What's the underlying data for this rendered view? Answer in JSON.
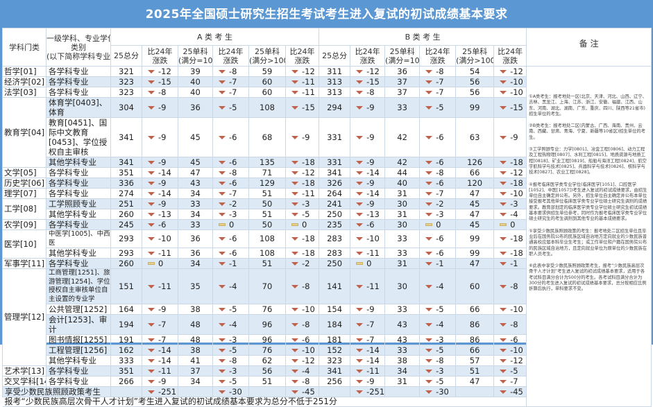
{
  "title": "2025年全国硕士研究生招生考试考生进入复试的初试成绩基本要求",
  "headers": {
    "category": "学科门类",
    "subject_line1": "一级学科、专业学位",
    "subject_line2": "类别",
    "subject_line3": "(以下简称学科专业)",
    "group_a": "A 类 考 生",
    "group_b": "B 类 考 生",
    "notes": "备 注",
    "cols": [
      "25总分",
      "比24年涨跌",
      "25单科(满分=100",
      "比24年涨跌",
      "25单科(满分>100",
      "比24年涨跌"
    ]
  },
  "groups": [
    {
      "category": "哲学[01]",
      "rows": [
        {
          "subject": "各学科专业",
          "a": [
            321,
            -12,
            39,
            -8,
            59,
            -12
          ],
          "b": [
            311,
            -12,
            36,
            -8,
            54,
            -12
          ]
        }
      ]
    },
    {
      "category": "经济学[02]",
      "rows": [
        {
          "subject": "各学科专业",
          "a": [
            323,
            -15,
            40,
            -7,
            60,
            -11
          ],
          "b": [
            313,
            -15,
            37,
            -7,
            56,
            -10
          ]
        }
      ]
    },
    {
      "category": "法学[03]",
      "rows": [
        {
          "subject": "各学科专业",
          "a": [
            323,
            -8,
            40,
            -7,
            60,
            -11
          ],
          "b": [
            313,
            -8,
            37,
            -7,
            56,
            -10
          ]
        }
      ]
    },
    {
      "category": "教育学[04]",
      "rows": [
        {
          "subject": "体育学[0403]、体育",
          "a": [
            304,
            -9,
            36,
            -5,
            108,
            -15
          ],
          "b": [
            294,
            -9,
            33,
            -5,
            99,
            -15
          ]
        },
        {
          "subject": "教育[0451]、国际中文教育[0453]、学位授权自主审核",
          "a": [
            341,
            -9,
            45,
            -6,
            68,
            -9
          ],
          "b": [
            331,
            -9,
            42,
            -6,
            63,
            -9
          ]
        },
        {
          "subject": "其他学科专业",
          "a": [
            341,
            -9,
            45,
            -6,
            135,
            -18
          ],
          "b": [
            331,
            -9,
            42,
            -6,
            126,
            -18
          ]
        }
      ]
    },
    {
      "category": "文学[05]",
      "rows": [
        {
          "subject": "各学科专业",
          "a": [
            351,
            -14,
            47,
            -8,
            71,
            -12
          ],
          "b": [
            341,
            -14,
            44,
            -8,
            66,
            -12
          ]
        }
      ]
    },
    {
      "category": "历史学[06]",
      "rows": [
        {
          "subject": "各学科专业",
          "a": [
            336,
            -9,
            43,
            -6,
            129,
            -18
          ],
          "b": [
            326,
            -9,
            40,
            -6,
            120,
            -18
          ]
        }
      ]
    },
    {
      "category": "理学[07]",
      "rows": [
        {
          "subject": "各学科专业",
          "a": [
            274,
            -14,
            34,
            -7,
            51,
            -11
          ],
          "b": [
            264,
            -14,
            31,
            -7,
            47,
            -10
          ]
        }
      ]
    },
    {
      "category": "工学[08]",
      "rows": [
        {
          "subject": "工学照顾专业",
          "a": [
            251,
            -9,
            33,
            -2,
            50,
            -3
          ],
          "b": [
            241,
            -9,
            30,
            -2,
            45,
            -3
          ]
        },
        {
          "subject": "其他学科专业",
          "a": [
            260,
            -13,
            34,
            -3,
            51,
            -5
          ],
          "b": [
            250,
            -13,
            31,
            -3,
            47,
            -4
          ]
        }
      ]
    },
    {
      "category": "农学[09]",
      "rows": [
        {
          "subject": "各学科专业",
          "a": [
            245,
            -6,
            33,
            0,
            50,
            0
          ],
          "b": [
            235,
            -6,
            30,
            0,
            45,
            0
          ]
        }
      ]
    },
    {
      "category": "医学[10]",
      "rows": [
        {
          "subject": "中医学[1005]、中西医",
          "small": true,
          "a": [
            293,
            -10,
            36,
            -6,
            108,
            -18
          ],
          "b": [
            283,
            -10,
            33,
            -6,
            99,
            -18
          ]
        },
        {
          "subject": "其他学科专业",
          "a": [
            293,
            -11,
            36,
            -6,
            108,
            -18
          ],
          "b": [
            283,
            -11,
            33,
            -6,
            99,
            -18
          ]
        }
      ]
    },
    {
      "category": "军事学[11]",
      "rows": [
        {
          "subject": "各学科专业",
          "a": [
            260,
            0,
            34,
            -1,
            51,
            -2
          ],
          "b": [
            250,
            0,
            31,
            -1,
            47,
            -1
          ]
        }
      ]
    },
    {
      "category": "管理学[12]",
      "rows": [
        {
          "subject": "工商管理[1251]、旅游管理[1254]、学位授权自主审核单位自主设置的专业学",
          "small": true,
          "a": [
            151,
            -11,
            35,
            -4,
            70,
            -8
          ],
          "b": [
            141,
            -11,
            30,
            -4,
            60,
            -8
          ]
        },
        {
          "subject": "公共管理[1252]",
          "a": [
            164,
            -9,
            38,
            -5,
            76,
            -10
          ],
          "b": [
            154,
            -9,
            33,
            -5,
            66,
            -10
          ]
        },
        {
          "subject": "会计[1253]、审计",
          "a": [
            194,
            -7,
            48,
            -4,
            96,
            -8
          ],
          "b": [
            184,
            -7,
            43,
            -4,
            86,
            -8
          ]
        },
        {
          "subject": "图书情报[1255]",
          "a": [
            191,
            -7,
            48,
            -3,
            96,
            -6
          ],
          "b": [
            181,
            -7,
            43,
            -3,
            86,
            -6
          ]
        },
        {
          "subject": "工程管理[1256]",
          "a": [
            162,
            -14,
            38,
            -5,
            76,
            -10
          ],
          "b": [
            152,
            -14,
            33,
            -5,
            66,
            -10
          ]
        },
        {
          "subject": "其他学科专业",
          "a": [
            333,
            -14,
            41,
            -8,
            62,
            -12
          ],
          "b": [
            323,
            -14,
            38,
            -8,
            57,
            -12
          ]
        }
      ]
    },
    {
      "category": "艺术学[13]",
      "rows": [
        {
          "subject": "各学科专业",
          "a": [
            351,
            -11,
            37,
            -3,
            56,
            -4
          ],
          "b": [
            341,
            -11,
            34,
            -3,
            51,
            -5
          ]
        }
      ]
    },
    {
      "category": "交叉学科[14]",
      "rows": [
        {
          "subject": "各学科专业",
          "a": [
            266,
            -9,
            34,
            -5,
            51,
            -8
          ],
          "b": [
            256,
            -9,
            31,
            -5,
            47,
            -7
          ]
        }
      ]
    }
  ],
  "minority_row": {
    "label": "享受少数民族照顾政策考生",
    "a": [
      null,
      -251,
      null,
      -30,
      null,
      -45
    ],
    "b": [
      null,
      -251,
      null,
      -30,
      null,
      -45
    ]
  },
  "footer": "报考“少数民族高层次骨干人才计划”考生进入复试的初试成绩基本要求为总分不低于251分",
  "notes": [
    "①A类考生：报考地处一区(北京、天津、河北、山西、辽宁、吉林、黑龙江、上海、江苏、浙江、安徽、福建、江西、山东、河南、湖北、湖南、广东、重庆、四川、陕西等21省市)招生单位的考生。",
    "②B类考生：报考地处二区(内蒙古、广西、海南、贵州、云南、西藏、甘肃、青海、宁夏、新疆等10省区)招生单位的考生。",
    "③工学照顾专业：力学[0801]、冶金工程[0806]、动力工程及工程热物理[0807]、水利工程[0815]、地质资源与地质工程[0818]、矿业工程[0819]、船舶与海洋工程[0824]、航空宇航科学与技术[0825]、兵器科学与技术[0826]、核科学与技术[0827]、农业工程[0828]。",
    "④报考临床医学类专业学位(临床医学[1051]、口腔医学[1052]、中医[1057])考生进入复试的初试成绩要求，由招生单位自主确定并公布。另外，招生单位自主确定并公布本单位接受报考其他单位临床医学类专业学位硕士研究生调剂的成绩要求。教育部划定的临床医学类专业学位硕士研究生初试成绩基本要求供招生单位参考，同时作为报考临床医学类专业学位硕士研究生的考生调剂到其他专业的基本成绩要求。",
    "⑤享受少数民族照顾政策的考生：报考地处二区招生单位且毕业后在国务院公布的民族区域自治地方定向就业的少数民族普通高校应届本科毕业生考生；或工作单位和户籍在国务院公布的民族区域自治地方，且定向就业单位为原单位的少数民族在职人员考生。",
    "⑥此表中享受少数民族照顾政策考生，报考“少数民族高层次骨干人才计划”考生进入复试的初试成绩基本要求，适用于各考试科目满分合计为500分的考生。各考试科目满分合计为300分的考生进入复试的初试成绩基本要求，总分按相应比例折算后执行，单科要求不变。"
  ],
  "icons": {
    "decrease": "down-triangle-icon",
    "unchanged": "flat-bar-icon"
  },
  "colors": {
    "title_bar": "#5b97d2",
    "decrease": "#c0614b",
    "unchanged": "#e6cf8a",
    "band": "#dde9f5"
  }
}
